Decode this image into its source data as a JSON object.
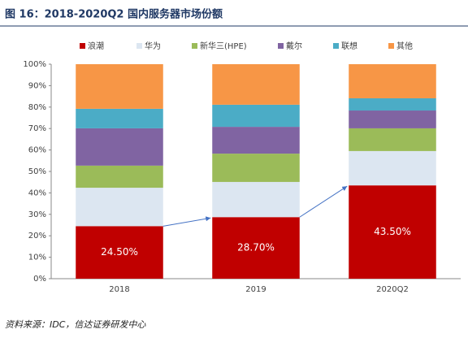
{
  "chart_data": {
    "type": "stacked_bar",
    "title": "图 16：2018-2020Q2 国内服务器市场份额",
    "categories": [
      "2018",
      "2019",
      "2020Q2"
    ],
    "series": [
      {
        "name": "浪潮",
        "color": "#c00000",
        "values": [
          24.5,
          28.7,
          43.5
        ],
        "value_labels": [
          "24.50%",
          "28.70%",
          "43.50%"
        ]
      },
      {
        "name": "华为",
        "color": "#dce6f1",
        "values": [
          17.9,
          16.4,
          16.0
        ]
      },
      {
        "name": "新华三(HPE)",
        "color": "#9bbb59",
        "values": [
          10.3,
          13.2,
          10.6
        ]
      },
      {
        "name": "戴尔",
        "color": "#8064a2",
        "values": [
          17.4,
          12.5,
          8.3
        ]
      },
      {
        "name": "联想",
        "color": "#4bacc6",
        "values": [
          9.1,
          10.3,
          5.7
        ]
      },
      {
        "name": "其他",
        "color": "#f79646",
        "values": [
          20.8,
          18.9,
          15.9
        ]
      }
    ],
    "ylim": [
      0,
      100
    ],
    "yticks": [
      {
        "value": 0,
        "label": "0%"
      },
      {
        "value": 10,
        "label": "10%"
      },
      {
        "value": 20,
        "label": "20%"
      },
      {
        "value": 30,
        "label": "30%"
      },
      {
        "value": 40,
        "label": "40%"
      },
      {
        "value": 50,
        "label": "50%"
      },
      {
        "value": 60,
        "label": "60%"
      },
      {
        "value": 70,
        "label": "70%"
      },
      {
        "value": 80,
        "label": "80%"
      },
      {
        "value": 90,
        "label": "90%"
      },
      {
        "value": 100,
        "label": "100%"
      }
    ],
    "legend": "top",
    "source": "资料来源：IDC，信达证券研发中心"
  }
}
